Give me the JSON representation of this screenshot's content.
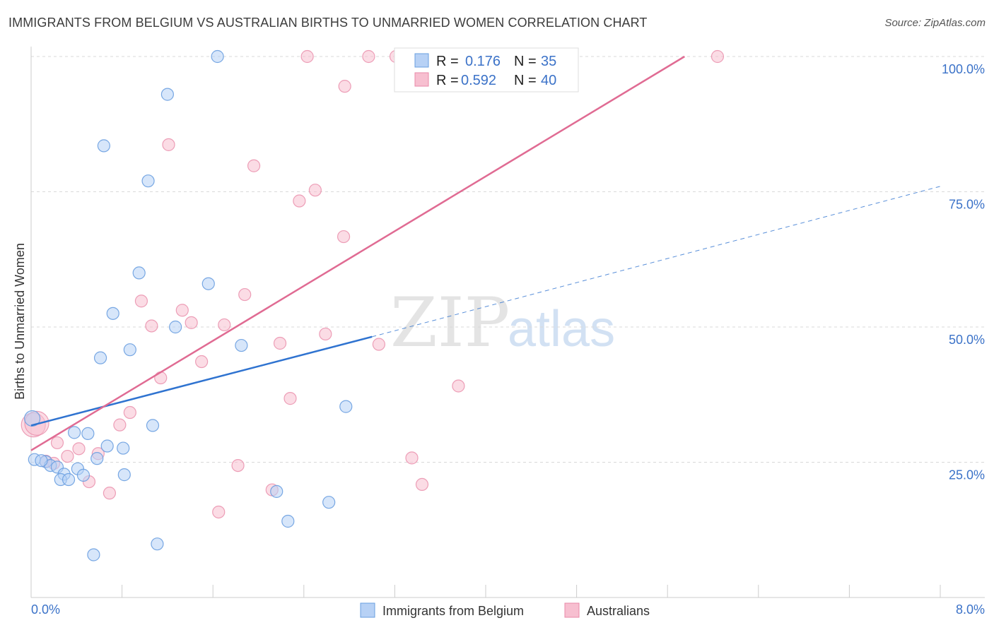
{
  "title": "IMMIGRANTS FROM BELGIUM VS AUSTRALIAN BIRTHS TO UNMARRIED WOMEN CORRELATION CHART",
  "source": "Source: ZipAtlas.com",
  "watermark": {
    "zip": "ZIP",
    "atlas": "atlas"
  },
  "colors": {
    "blue_fill": "#b7d1f5",
    "blue_stroke": "#6a9fe0",
    "blue_line": "#2f73d0",
    "pink_fill": "#f7bfd0",
    "pink_stroke": "#e88aa8",
    "pink_line": "#e06b93",
    "axis_text": "#3b72c8",
    "grid": "#d9d9d9"
  },
  "legend_box": {
    "rows": [
      {
        "r_label": "R =",
        "r_value": "0.176",
        "n_label": "N =",
        "n_value": "35"
      },
      {
        "r_label": "R =",
        "r_value": "0.592",
        "n_label": "N =",
        "n_value": "40"
      }
    ]
  },
  "bottom_legend": [
    "Immigrants from Belgium",
    "Australians"
  ],
  "chart_data": {
    "type": "scatter",
    "title": "IMMIGRANTS FROM BELGIUM VS AUSTRALIAN BIRTHS TO UNMARRIED WOMEN CORRELATION CHART",
    "xlabel": "",
    "ylabel": "Births to Unmarried Women",
    "xlim": [
      0,
      8
    ],
    "ylim": [
      0,
      100
    ],
    "x_tick_labels": [
      "0.0%",
      "8.0%"
    ],
    "y_tick_labels": [
      "25.0%",
      "50.0%",
      "75.0%",
      "100.0%"
    ],
    "y_ticks": [
      25,
      50,
      75,
      100
    ],
    "grid": true,
    "series": [
      {
        "name": "Immigrants from Belgium",
        "r": 0.176,
        "n": 35,
        "trend": {
          "x0": 0,
          "y0": 31.8,
          "x1": 3.0,
          "y1": 48.2,
          "x_dash_end": 8.0,
          "y_dash_end": 76.0
        },
        "points": [
          [
            1.64,
            100.0
          ],
          [
            1.2,
            93.0
          ],
          [
            0.64,
            83.5
          ],
          [
            1.03,
            77.0
          ],
          [
            0.95,
            60.0
          ],
          [
            1.56,
            58.0
          ],
          [
            0.72,
            52.5
          ],
          [
            1.27,
            50.0
          ],
          [
            0.87,
            45.8
          ],
          [
            1.85,
            46.6
          ],
          [
            0.61,
            44.3
          ],
          [
            2.77,
            35.3
          ],
          [
            0.01,
            33.1
          ],
          [
            1.07,
            31.8
          ],
          [
            0.38,
            30.5
          ],
          [
            0.5,
            30.3
          ],
          [
            0.67,
            28.0
          ],
          [
            0.81,
            27.6
          ],
          [
            0.58,
            25.7
          ],
          [
            0.03,
            25.5
          ],
          [
            0.13,
            25.1
          ],
          [
            0.17,
            24.4
          ],
          [
            0.23,
            24.1
          ],
          [
            0.41,
            23.8
          ],
          [
            0.29,
            22.8
          ],
          [
            0.46,
            22.6
          ],
          [
            0.82,
            22.7
          ],
          [
            0.26,
            21.8
          ],
          [
            0.33,
            21.8
          ],
          [
            2.16,
            19.6
          ],
          [
            2.62,
            17.6
          ],
          [
            2.26,
            14.1
          ],
          [
            1.11,
            9.9
          ],
          [
            0.55,
            7.9
          ],
          [
            0.09,
            25.3
          ]
        ]
      },
      {
        "name": "Australians",
        "r": 0.592,
        "n": 40,
        "trend": {
          "x0": 0,
          "y0": 27.2,
          "x1": 5.75,
          "y1": 100.0
        },
        "points": [
          [
            2.43,
            100.0
          ],
          [
            2.97,
            100.0
          ],
          [
            3.21,
            100.0
          ],
          [
            6.04,
            100.0
          ],
          [
            2.76,
            94.5
          ],
          [
            1.21,
            83.7
          ],
          [
            1.96,
            79.8
          ],
          [
            2.5,
            75.3
          ],
          [
            2.36,
            73.3
          ],
          [
            2.75,
            66.7
          ],
          [
            1.88,
            56.0
          ],
          [
            0.97,
            54.8
          ],
          [
            1.33,
            53.1
          ],
          [
            1.41,
            50.8
          ],
          [
            1.06,
            50.2
          ],
          [
            1.7,
            50.4
          ],
          [
            2.59,
            48.7
          ],
          [
            2.19,
            47.0
          ],
          [
            3.06,
            46.8
          ],
          [
            1.5,
            43.6
          ],
          [
            1.14,
            40.6
          ],
          [
            3.76,
            39.1
          ],
          [
            2.28,
            36.8
          ],
          [
            0.87,
            34.2
          ],
          [
            0.78,
            31.9
          ],
          [
            0.02,
            31.9
          ],
          [
            0.23,
            28.6
          ],
          [
            0.42,
            27.5
          ],
          [
            0.59,
            26.6
          ],
          [
            0.32,
            26.1
          ],
          [
            3.35,
            25.8
          ],
          [
            0.13,
            25.2
          ],
          [
            1.82,
            24.4
          ],
          [
            0.51,
            21.4
          ],
          [
            3.44,
            20.9
          ],
          [
            2.12,
            19.9
          ],
          [
            0.69,
            19.3
          ],
          [
            1.65,
            15.8
          ],
          [
            0.05,
            32.2
          ],
          [
            0.2,
            24.8
          ]
        ]
      }
    ]
  }
}
